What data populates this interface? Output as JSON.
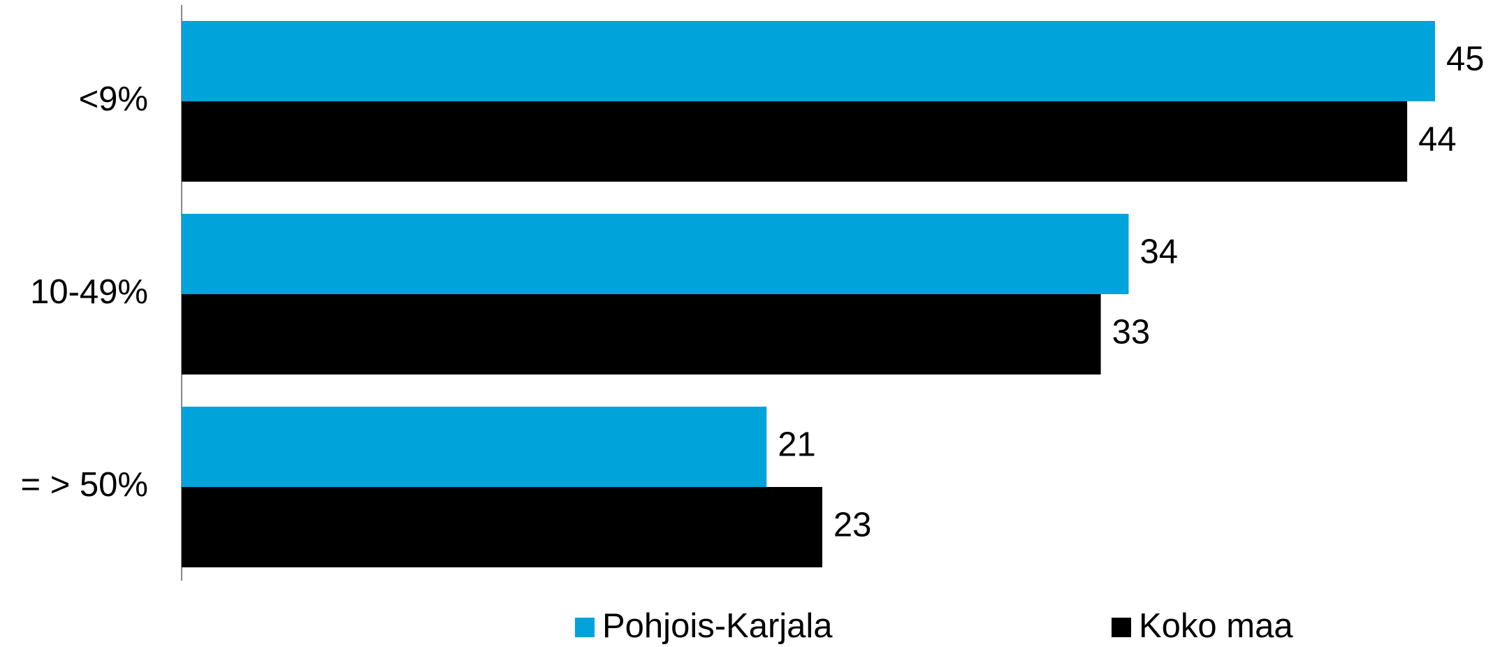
{
  "chart_data": {
    "type": "barh",
    "categories": [
      "<9%",
      "10-49%",
      "= > 50%"
    ],
    "series": [
      {
        "name": "Pohjois-Karjala",
        "color": "#00a3da",
        "values": [
          45,
          34,
          21
        ]
      },
      {
        "name": "Koko maa",
        "color": "#000000",
        "values": [
          44,
          33,
          23
        ]
      }
    ],
    "legend": "bottom"
  }
}
